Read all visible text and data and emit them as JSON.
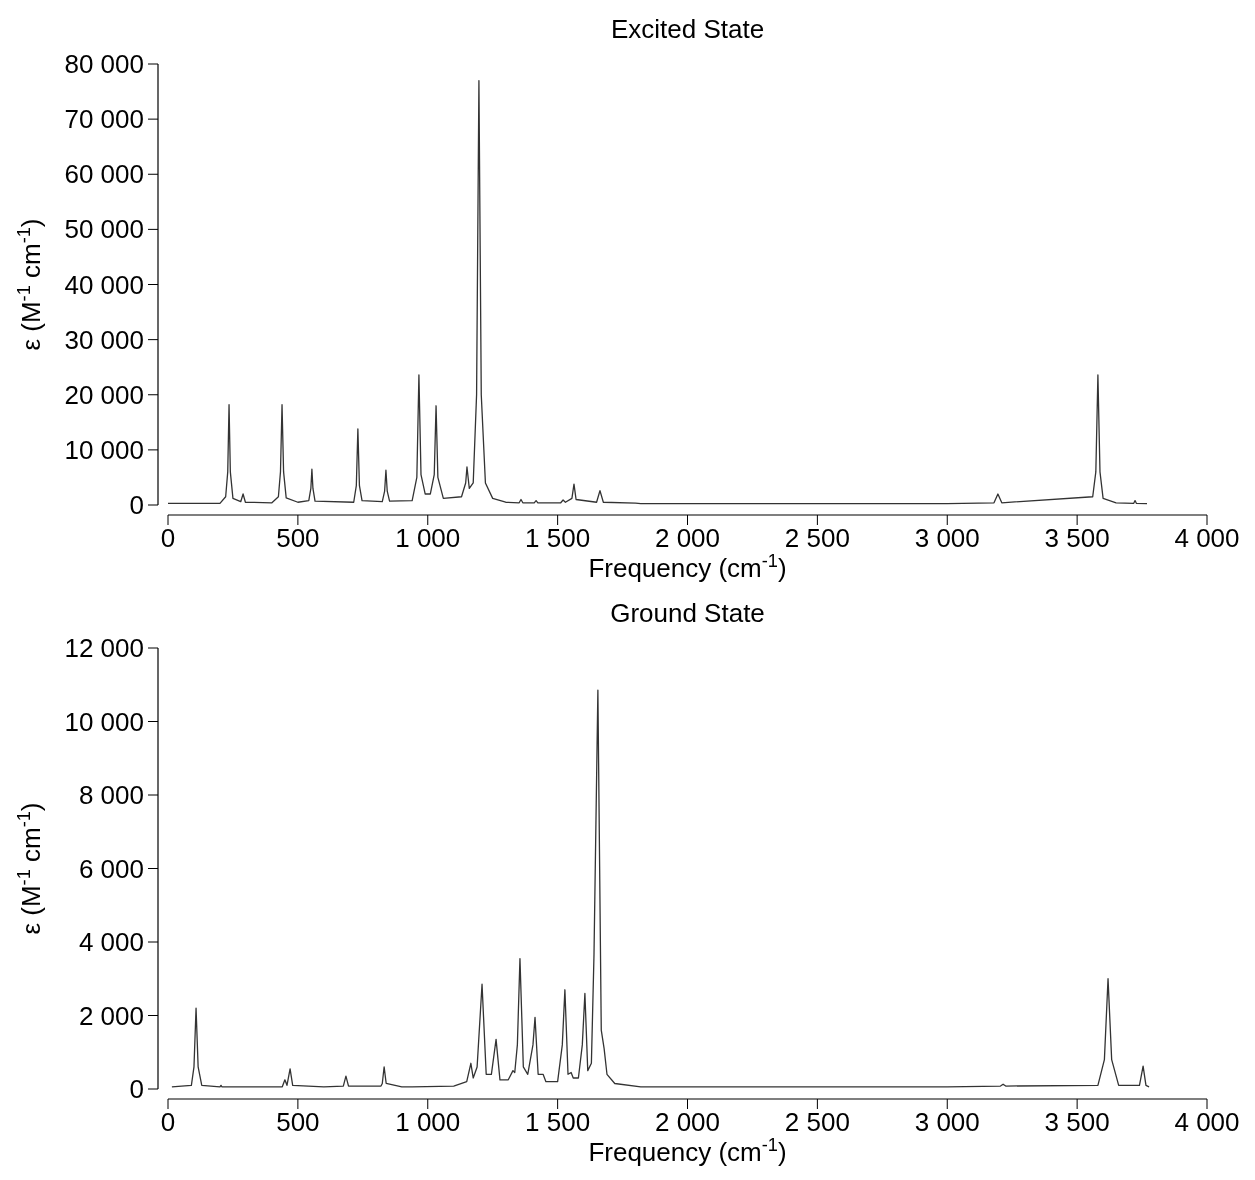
{
  "chart_data": [
    {
      "type": "line",
      "title": "Excited State",
      "xlabel": "Frequency (cm$^{-1}$)",
      "ylabel": "ε (M$^{-1}$ cm$^{-1}$)",
      "xlim": [
        0,
        4000
      ],
      "ylim": [
        0,
        80000
      ],
      "xticks": [
        0,
        {
          "value": 500,
          "label": "500"
        },
        {
          "value": 1000,
          "label": "1 000"
        },
        {
          "value": 1500,
          "label": "1 500"
        },
        {
          "value": 2000,
          "label": "2 000"
        },
        {
          "value": 2500,
          "label": "2 500"
        },
        {
          "value": 3000,
          "label": "3 000"
        },
        {
          "value": 3500,
          "label": "3 500"
        },
        {
          "value": 4000,
          "label": "4 000"
        }
      ],
      "yticks": [
        0,
        {
          "value": 10000,
          "label": "10 000"
        },
        {
          "value": 20000,
          "label": "20 000"
        },
        {
          "value": 30000,
          "label": "30 000"
        },
        {
          "value": 40000,
          "label": "40 000"
        },
        {
          "value": 50000,
          "label": "50 000"
        },
        {
          "value": 60000,
          "label": "60 000"
        },
        {
          "value": 70000,
          "label": "70 000"
        },
        {
          "value": 80000,
          "label": "80 000"
        }
      ],
      "series": [
        {
          "color": "#333333",
          "x": [
            0,
            200,
            222,
            230,
            235,
            240,
            250,
            280,
            289,
            298,
            400,
            425,
            433,
            439,
            445,
            455,
            500,
            542,
            550,
            554,
            558,
            566,
            715,
            725,
            731,
            737,
            747,
            825,
            834,
            839,
            844,
            853,
            940,
            958,
            966,
            974,
            990,
            1010,
            1025,
            1032,
            1039,
            1060,
            1130,
            1146,
            1151,
            1160,
            1175,
            1188,
            1197,
            1206,
            1222,
            1250,
            1300,
            1352,
            1359,
            1366,
            1410,
            1417,
            1424,
            1512,
            1521,
            1530,
            1555,
            1563,
            1571,
            1650,
            1663,
            1676,
            1800,
            1820,
            3000,
            3180,
            3195,
            3210,
            3560,
            3572,
            3580,
            3588,
            3600,
            3650,
            3718,
            3723,
            3728,
            3769
          ],
          "values": [
            300,
            300,
            1500,
            6000,
            18200,
            6000,
            1200,
            600,
            2000,
            500,
            400,
            1500,
            6000,
            18200,
            6000,
            1300,
            500,
            800,
            3000,
            6500,
            3000,
            700,
            500,
            3500,
            13800,
            3500,
            800,
            600,
            2500,
            6300,
            2500,
            700,
            800,
            5000,
            23600,
            5500,
            2000,
            2000,
            5500,
            18000,
            5000,
            1200,
            1500,
            4000,
            6900,
            3000,
            4000,
            20000,
            77000,
            20000,
            4000,
            1200,
            500,
            400,
            1000,
            400,
            400,
            800,
            400,
            400,
            900,
            500,
            1200,
            3800,
            1000,
            500,
            2600,
            500,
            350,
            250,
            250,
            400,
            2000,
            400,
            1500,
            6000,
            23600,
            6000,
            1200,
            400,
            300,
            800,
            300,
            250
          ]
        }
      ]
    },
    {
      "type": "line",
      "title": "Ground State",
      "xlabel": "Frequency (cm$^{-1}$)",
      "ylabel": "ε (M$^{-1}$ cm$^{-1}$)",
      "xlim": [
        0,
        4000
      ],
      "ylim": [
        0,
        12000
      ],
      "xticks": [
        0,
        {
          "value": 500,
          "label": "500"
        },
        {
          "value": 1000,
          "label": "1 000"
        },
        {
          "value": 1500,
          "label": "1 500"
        },
        {
          "value": 2000,
          "label": "2 000"
        },
        {
          "value": 2500,
          "label": "2 500"
        },
        {
          "value": 3000,
          "label": "3 000"
        },
        {
          "value": 3500,
          "label": "3 500"
        },
        {
          "value": 4000,
          "label": "4 000"
        }
      ],
      "yticks": [
        0,
        {
          "value": 2000,
          "label": "2 000"
        },
        {
          "value": 4000,
          "label": "4 000"
        },
        {
          "value": 6000,
          "label": "6 000"
        },
        {
          "value": 8000,
          "label": "8 000"
        },
        {
          "value": 10000,
          "label": "10 000"
        },
        {
          "value": 12000,
          "label": "12 000"
        }
      ],
      "series": [
        {
          "color": "#333333",
          "x": [
            15,
            90,
            100,
            108,
            116,
            130,
            200,
            204,
            208,
            440,
            450,
            458,
            470,
            480,
            600,
            675,
            685,
            695,
            820,
            825,
            832,
            840,
            900,
            940,
            1100,
            1150,
            1166,
            1175,
            1190,
            1209,
            1225,
            1245,
            1263,
            1278,
            1310,
            1328,
            1335,
            1345,
            1355,
            1368,
            1385,
            1405,
            1413,
            1425,
            1444,
            1455,
            1500,
            1518,
            1528,
            1540,
            1552,
            1560,
            1580,
            1595,
            1605,
            1616,
            1630,
            1640,
            1655,
            1668,
            1679,
            1690,
            1720,
            1820,
            3000,
            3205,
            3215,
            3225,
            3580,
            3605,
            3619,
            3633,
            3660,
            3740,
            3754,
            3765,
            3777
          ],
          "values": [
            60,
            100,
            600,
            2200,
            600,
            100,
            60,
            100,
            60,
            60,
            250,
            100,
            550,
            100,
            60,
            80,
            350,
            80,
            80,
            150,
            600,
            150,
            60,
            60,
            80,
            200,
            700,
            300,
            600,
            2850,
            400,
            400,
            1350,
            250,
            250,
            500,
            450,
            1200,
            3550,
            600,
            400,
            1200,
            1950,
            400,
            400,
            200,
            200,
            1200,
            2700,
            400,
            450,
            300,
            300,
            1200,
            2600,
            500,
            700,
            3650,
            10850,
            1600,
            1100,
            400,
            150,
            60,
            60,
            80,
            130,
            80,
            100,
            800,
            3000,
            800,
            100,
            100,
            620,
            100,
            60
          ]
        }
      ]
    }
  ]
}
